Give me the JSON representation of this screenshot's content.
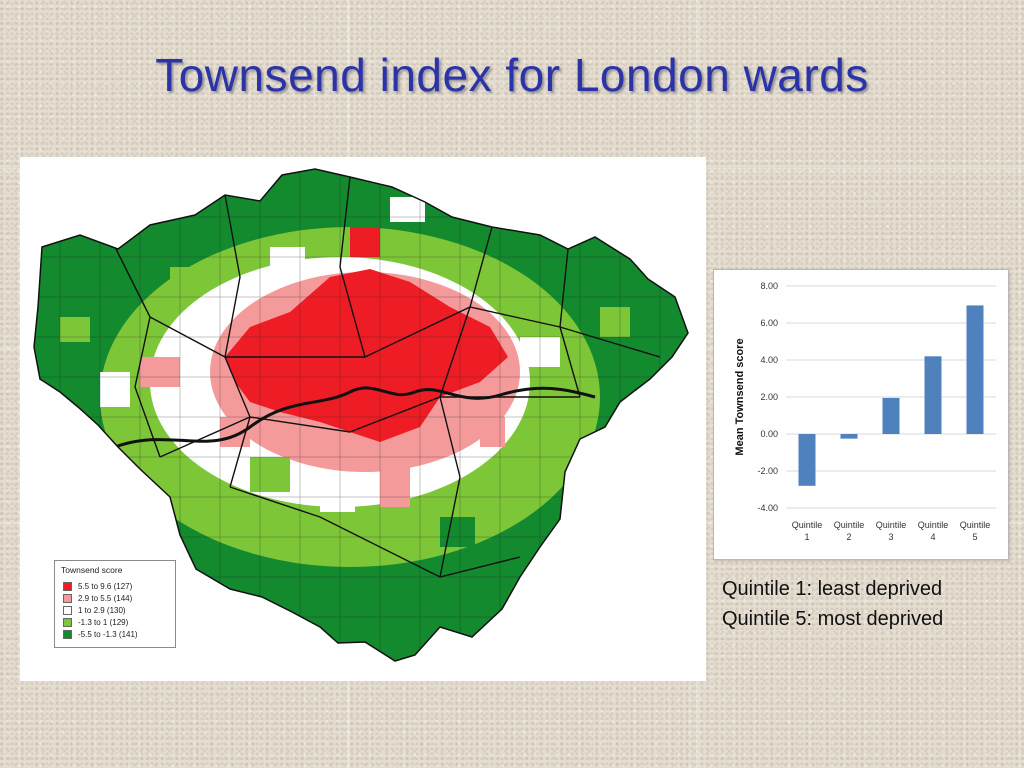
{
  "slide": {
    "title": "Townsend index for London wards"
  },
  "map": {
    "legend": {
      "title": "Townsend score",
      "items": [
        {
          "label": "5.5 to  9.6  (127)",
          "color": "#ee1c24"
        },
        {
          "label": "2.9 to  5.5  (144)",
          "color": "#f59a9a"
        },
        {
          "label": "1  to  2.9  (130)",
          "color": "#ffffff"
        },
        {
          "label": "-1.3 to  1   (129)",
          "color": "#7dc638"
        },
        {
          "label": "-5.5 to -1.3  (141)",
          "color": "#148a2e"
        }
      ]
    }
  },
  "chart_data": {
    "type": "bar",
    "categories": [
      "Quintile 1",
      "Quintile 2",
      "Quintile 3",
      "Quintile 4",
      "Quintile 5"
    ],
    "values": [
      -2.8,
      -0.25,
      1.95,
      4.2,
      6.95
    ],
    "title": "",
    "xlabel": "",
    "ylabel": "Mean Townsend score",
    "ylim": [
      -4,
      8
    ],
    "yticks": [
      "8.00",
      "6.00",
      "4.00",
      "2.00",
      "0.00",
      "-2.00",
      "-4.00"
    ],
    "grid": true,
    "bar_color": "#4f81bd"
  },
  "captions": {
    "line1": "Quintile 1: least deprived",
    "line2": "Quintile 5: most deprived"
  }
}
